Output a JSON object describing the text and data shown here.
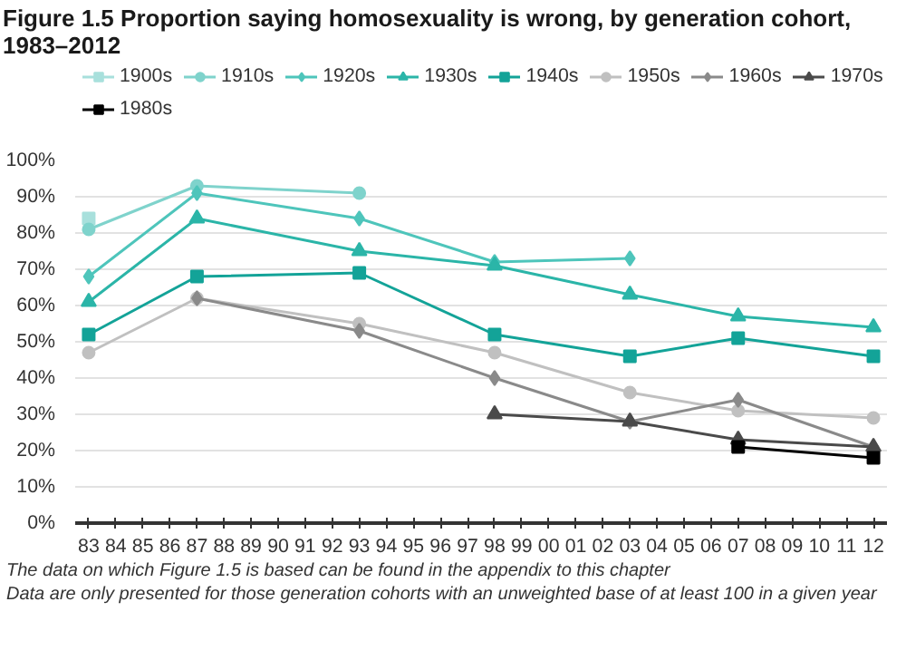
{
  "chart_data": {
    "type": "line",
    "title": "Figure 1.5 Proportion saying homosexuality is wrong, by generation cohort, 1983–2012",
    "annotations": [
      "The data on which Figure 1.5 is based can be found in the appendix to this chapter",
      "Data are only presented for those generation cohorts with an unweighted base of at least 100 in a given year"
    ],
    "xlim": [
      1982.5,
      2012.5
    ],
    "xticks": [
      {
        "value": 1983,
        "label": "83"
      },
      {
        "value": 1984,
        "label": "84"
      },
      {
        "value": 1985,
        "label": "85"
      },
      {
        "value": 1986,
        "label": "86"
      },
      {
        "value": 1987,
        "label": "87"
      },
      {
        "value": 1988,
        "label": "88"
      },
      {
        "value": 1989,
        "label": "89"
      },
      {
        "value": 1990,
        "label": "90"
      },
      {
        "value": 1991,
        "label": "91"
      },
      {
        "value": 1992,
        "label": "92"
      },
      {
        "value": 1993,
        "label": "93"
      },
      {
        "value": 1994,
        "label": "94"
      },
      {
        "value": 1995,
        "label": "95"
      },
      {
        "value": 1996,
        "label": "96"
      },
      {
        "value": 1997,
        "label": "97"
      },
      {
        "value": 1998,
        "label": "98"
      },
      {
        "value": 1999,
        "label": "99"
      },
      {
        "value": 2000,
        "label": "00"
      },
      {
        "value": 2001,
        "label": "01"
      },
      {
        "value": 2002,
        "label": "02"
      },
      {
        "value": 2003,
        "label": "03"
      },
      {
        "value": 2004,
        "label": "04"
      },
      {
        "value": 2005,
        "label": "05"
      },
      {
        "value": 2006,
        "label": "06"
      },
      {
        "value": 2007,
        "label": "07"
      },
      {
        "value": 2008,
        "label": "08"
      },
      {
        "value": 2009,
        "label": "09"
      },
      {
        "value": 2010,
        "label": "10"
      },
      {
        "value": 2011,
        "label": "11"
      },
      {
        "value": 2012,
        "label": "12"
      }
    ],
    "ylim": [
      0,
      100
    ],
    "yticks": [
      {
        "value": 0,
        "label": "0%"
      },
      {
        "value": 10,
        "label": "10%"
      },
      {
        "value": 20,
        "label": "20%"
      },
      {
        "value": 30,
        "label": "30%"
      },
      {
        "value": 40,
        "label": "40%"
      },
      {
        "value": 50,
        "label": "50%"
      },
      {
        "value": 60,
        "label": "60%"
      },
      {
        "value": 70,
        "label": "70%"
      },
      {
        "value": 80,
        "label": "80%"
      },
      {
        "value": 90,
        "label": "90%"
      },
      {
        "value": 100,
        "label": "100%"
      }
    ],
    "grid": "y",
    "legend": "top left",
    "line_style": "solid",
    "series": [
      {
        "name": "1900s",
        "color": "#a8e0dc",
        "marker": "square",
        "x": [
          1983
        ],
        "values": [
          84
        ]
      },
      {
        "name": "1910s",
        "color": "#7fd3cc",
        "marker": "circle",
        "x": [
          1983,
          1987,
          1993
        ],
        "values": [
          81,
          93,
          91
        ]
      },
      {
        "name": "1920s",
        "color": "#4ec5bb",
        "marker": "diamond",
        "x": [
          1983,
          1987,
          1993,
          1998,
          2003
        ],
        "values": [
          68,
          91,
          84,
          72,
          73
        ]
      },
      {
        "name": "1930s",
        "color": "#2bb5a8",
        "marker": "triangle",
        "x": [
          1983,
          1987,
          1993,
          1998,
          2003,
          2007,
          2012
        ],
        "values": [
          61,
          84,
          75,
          71,
          63,
          57,
          54
        ]
      },
      {
        "name": "1940s",
        "color": "#13a398",
        "marker": "square",
        "x": [
          1983,
          1987,
          1993,
          1998,
          2003,
          2007,
          2012
        ],
        "values": [
          52,
          68,
          69,
          52,
          46,
          51,
          46
        ]
      },
      {
        "name": "1950s",
        "color": "#c0c0c0",
        "marker": "circle",
        "x": [
          1983,
          1987,
          1993,
          1998,
          2003,
          2007,
          2012
        ],
        "values": [
          47,
          62,
          55,
          47,
          36,
          31,
          29
        ]
      },
      {
        "name": "1960s",
        "color": "#8a8a8a",
        "marker": "diamond",
        "x": [
          1987,
          1993,
          1998,
          2003,
          2007,
          2012
        ],
        "values": [
          62,
          53,
          40,
          28,
          34,
          21
        ]
      },
      {
        "name": "1970s",
        "color": "#4a4a4a",
        "marker": "triangle",
        "x": [
          1998,
          2003,
          2007,
          2012
        ],
        "values": [
          30,
          28,
          23,
          21
        ]
      },
      {
        "name": "1980s",
        "color": "#000000",
        "marker": "square",
        "x": [
          2007,
          2012
        ],
        "values": [
          21,
          18
        ]
      }
    ]
  }
}
